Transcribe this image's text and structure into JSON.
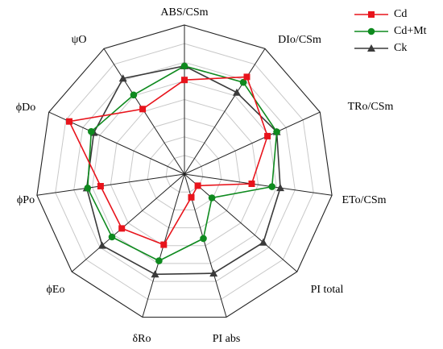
{
  "chart_data": {
    "type": "radar",
    "categories": [
      "ABS/CSm",
      "DIo/CSm",
      "TRo/CSm",
      "ETo/CSm",
      "PI total",
      "PI abs",
      "δRo",
      "ϕEo",
      "ϕPo",
      "ϕDo",
      "ψO"
    ],
    "ylim": [
      0,
      1.6
    ],
    "grid_levels": [
      0.2,
      0.4,
      0.6,
      0.8,
      1.0,
      1.2,
      1.4,
      1.6
    ],
    "grid": true,
    "legend_position": "top-right",
    "series": [
      {
        "name": "Cd",
        "color": "#e8141c",
        "marker": "square",
        "values": [
          1.01,
          1.24,
          0.98,
          0.73,
          0.19,
          0.26,
          0.79,
          0.89,
          0.91,
          1.36,
          0.83
        ]
      },
      {
        "name": "Cd+Mt",
        "color": "#0e8a1e",
        "marker": "circle",
        "values": [
          1.16,
          1.17,
          1.09,
          0.95,
          0.39,
          0.72,
          0.97,
          1.03,
          1.05,
          1.1,
          1.01
        ]
      },
      {
        "name": "Ck",
        "color": "#3a3a3a",
        "marker": "triangle",
        "values": [
          1.16,
          1.04,
          1.09,
          1.04,
          1.12,
          1.11,
          1.12,
          1.17,
          1.06,
          1.07,
          1.22
        ]
      }
    ]
  }
}
